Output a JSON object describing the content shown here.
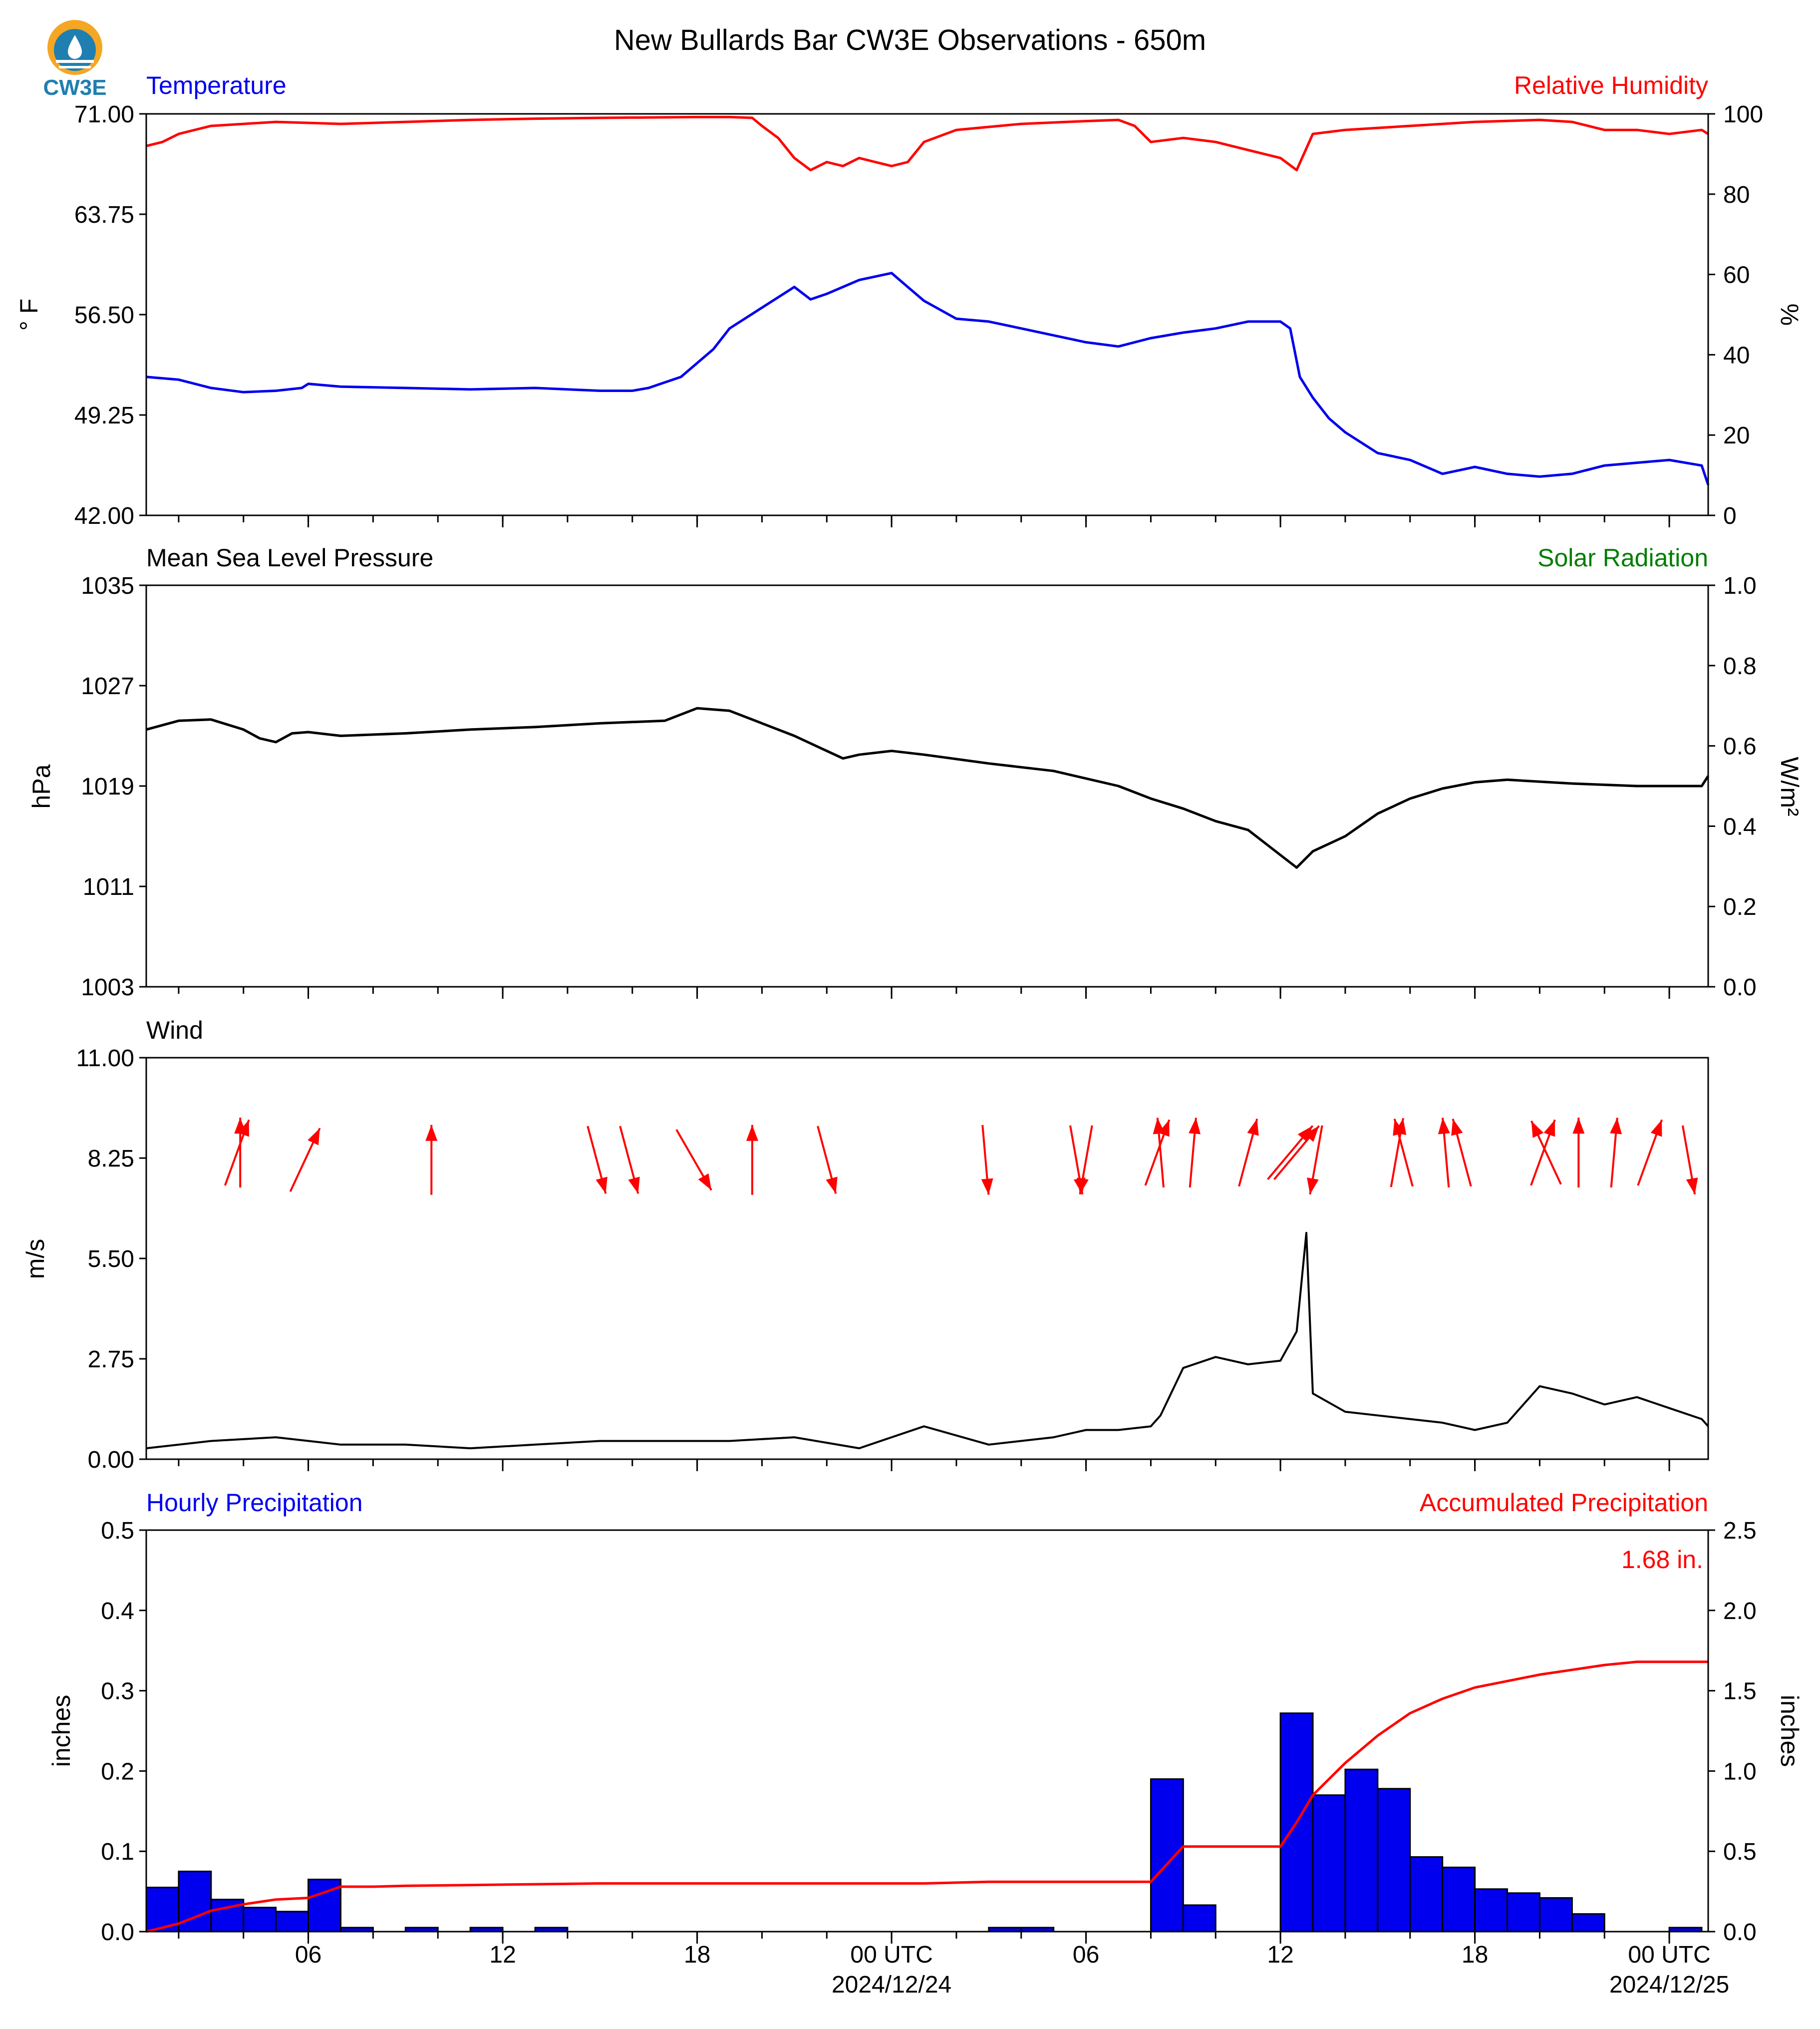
{
  "title": "New Bullards Bar CW3E Observations - 650m",
  "logo_text": "CW3E",
  "colors": {
    "blue": "#0000ee",
    "red": "#ff0000",
    "green": "#007d00",
    "black": "#000000",
    "logo_orange": "#f5a623",
    "logo_teal": "#1f7fb0"
  },
  "x_axis": {
    "range_hours": [
      0,
      48.2
    ],
    "major_ticks": [
      {
        "h": 5,
        "label": "06"
      },
      {
        "h": 11,
        "label": "12"
      },
      {
        "h": 17,
        "label": "18"
      },
      {
        "h": 23,
        "label": "00 UTC",
        "date": "2024/12/24"
      },
      {
        "h": 29,
        "label": "06"
      },
      {
        "h": 35,
        "label": "12"
      },
      {
        "h": 41,
        "label": "18"
      },
      {
        "h": 47,
        "label": "00 UTC",
        "date": "2024/12/25"
      }
    ]
  },
  "panels": {
    "temp_rh": {
      "left_label": "Temperature",
      "right_label": "Relative Humidity",
      "left_unit": "° F",
      "right_unit": "%",
      "left_ticks": [
        "71.00",
        "63.75",
        "56.50",
        "49.25",
        "42.00"
      ],
      "right_ticks": [
        "100",
        "80",
        "60",
        "40",
        "20",
        "0"
      ]
    },
    "pressure": {
      "left_label": "Mean Sea Level Pressure",
      "right_label": "Solar Radiation",
      "left_unit": "hPa",
      "right_unit": "W/m²",
      "left_ticks": [
        "1035",
        "1027",
        "1019",
        "1011",
        "1003"
      ],
      "right_ticks": [
        "1.0",
        "0.8",
        "0.6",
        "0.4",
        "0.2",
        "0.0"
      ]
    },
    "wind": {
      "left_label": "Wind",
      "left_unit": "m/s",
      "left_ticks": [
        "11.00",
        "8.25",
        "5.50",
        "2.75",
        "0.00"
      ]
    },
    "precip": {
      "left_label": "Hourly Precipitation",
      "right_label": "Accumulated Precipitation",
      "left_unit": "inches",
      "right_unit": "inches",
      "total_label": "1.68 in.",
      "left_ticks": [
        "0.5",
        "0.4",
        "0.3",
        "0.2",
        "0.1",
        "0.0"
      ],
      "right_ticks": [
        "2.5",
        "2.0",
        "1.5",
        "1.0",
        "0.5",
        "0.0"
      ]
    }
  },
  "chart_data": [
    {
      "type": "line",
      "title": "",
      "xlabel": "",
      "ylabel": "° F",
      "ylim": [
        42,
        71
      ],
      "y2label": "%",
      "y2lim": [
        0,
        100
      ],
      "series": [
        {
          "name": "Temperature",
          "axis": "left",
          "color": "#0000ee",
          "x": [
            0,
            1,
            2,
            3,
            4,
            4.8,
            5,
            6,
            8,
            10,
            12,
            14,
            15,
            15.5,
            16,
            16.5,
            17,
            17.5,
            18,
            19,
            20,
            20.5,
            21,
            22,
            23,
            23.5,
            24,
            25,
            26,
            27,
            28,
            29,
            30,
            31,
            32,
            33,
            34,
            35,
            35.3,
            35.6,
            36,
            36.5,
            37,
            38,
            39,
            40,
            41,
            42,
            43,
            44,
            45,
            46,
            47,
            48,
            48.2
          ],
          "y": [
            52.0,
            51.8,
            51.2,
            50.9,
            51.0,
            51.2,
            51.5,
            51.3,
            51.2,
            51.1,
            51.2,
            51.0,
            51.0,
            51.2,
            51.6,
            52.0,
            53.0,
            54.0,
            55.5,
            57.0,
            58.5,
            57.6,
            58.0,
            59.0,
            59.5,
            58.5,
            57.5,
            56.2,
            56.0,
            55.5,
            55.0,
            54.5,
            54.2,
            54.8,
            55.2,
            55.5,
            56.0,
            56.0,
            55.5,
            52.0,
            50.5,
            49.0,
            48.0,
            46.5,
            46.0,
            45.0,
            45.5,
            45.0,
            44.8,
            45.0,
            45.6,
            45.8,
            46.0,
            45.6,
            44.2
          ]
        },
        {
          "name": "Relative Humidity",
          "axis": "right",
          "color": "#ff0000",
          "x": [
            0,
            0.5,
            1,
            2,
            3,
            4,
            6,
            8,
            10,
            12,
            14,
            17,
            18,
            18.7,
            19,
            19.5,
            20,
            20.5,
            21,
            21.5,
            22,
            22.5,
            23,
            23.5,
            24,
            25,
            27,
            29,
            30,
            30.5,
            31,
            32,
            33,
            34,
            35,
            35.5,
            36,
            37,
            39,
            41,
            43,
            44,
            45,
            46,
            47,
            48,
            48.2
          ],
          "y": [
            92,
            93,
            95,
            97,
            97.5,
            98,
            97.5,
            98,
            98.5,
            98.8,
            99,
            99.2,
            99.2,
            99,
            97,
            94,
            89,
            86,
            88,
            87,
            89,
            88,
            87,
            88,
            93,
            96,
            97.5,
            98.2,
            98.5,
            97,
            93,
            94,
            93,
            91,
            89,
            86,
            95,
            96,
            97,
            98,
            98.5,
            98,
            96,
            96,
            95,
            96,
            95
          ]
        }
      ]
    },
    {
      "type": "line",
      "title": "",
      "xlabel": "",
      "ylabel": "hPa",
      "ylim": [
        1003,
        1035
      ],
      "y2label": "W/m²",
      "y2lim": [
        0.0,
        1.0
      ],
      "series": [
        {
          "name": "Mean Sea Level Pressure",
          "axis": "left",
          "color": "#000000",
          "x": [
            0,
            1,
            2,
            3,
            3.5,
            4,
            4.5,
            5,
            6,
            8,
            10,
            12,
            14,
            16,
            17,
            18,
            19,
            20,
            21,
            21.5,
            22,
            23,
            24,
            26,
            28,
            30,
            31,
            32,
            33,
            34,
            35,
            35.5,
            36,
            37,
            38,
            39,
            40,
            41,
            42,
            44,
            46,
            48,
            48.2
          ],
          "y": [
            1023.5,
            1024.2,
            1024.3,
            1023.5,
            1022.8,
            1022.5,
            1023.2,
            1023.3,
            1023.0,
            1023.2,
            1023.5,
            1023.7,
            1024,
            1024.2,
            1025.2,
            1025.0,
            1024.0,
            1023.0,
            1021.8,
            1021.2,
            1021.5,
            1021.8,
            1021.5,
            1020.8,
            1020.2,
            1019.0,
            1018.0,
            1017.2,
            1016.2,
            1015.5,
            1013.5,
            1012.5,
            1013.8,
            1015.0,
            1016.8,
            1018.0,
            1018.8,
            1019.3,
            1019.5,
            1019.2,
            1019,
            1019,
            1019.8
          ]
        }
      ]
    },
    {
      "type": "line",
      "title": "",
      "xlabel": "",
      "ylabel": "m/s",
      "ylim": [
        0,
        11
      ],
      "series": [
        {
          "name": "Wind",
          "axis": "left",
          "color": "#000000",
          "x": [
            0,
            2,
            4,
            6,
            8,
            10,
            12,
            14,
            16,
            18,
            20,
            22,
            23,
            24,
            26,
            28,
            29,
            30,
            31,
            31.3,
            32,
            33,
            34,
            35,
            35.5,
            35.8,
            36,
            37,
            38,
            39,
            40,
            41,
            42,
            43,
            44,
            45,
            46,
            47,
            48,
            48.2
          ],
          "y": [
            0.3,
            0.5,
            0.6,
            0.4,
            0.4,
            0.3,
            0.4,
            0.5,
            0.5,
            0.5,
            0.6,
            0.3,
            0.6,
            0.9,
            0.4,
            0.6,
            0.8,
            0.8,
            0.9,
            1.2,
            2.5,
            2.8,
            2.6,
            2.7,
            3.5,
            6.2,
            1.8,
            1.3,
            1.2,
            1.1,
            1.0,
            0.8,
            1.0,
            2.0,
            1.8,
            1.5,
            1.7,
            1.4,
            1.1,
            0.9
          ]
        },
        {
          "name": "Wind direction arrows",
          "axis": "none",
          "color": "#ff0000",
          "x": [
            2.8,
            2.9,
            4.9,
            8.8,
            13.9,
            14.9,
            16.9,
            18.7,
            21.0,
            25.9,
            28.7,
            29.0,
            31.2,
            31.3,
            32.3,
            34.0,
            35.3,
            35.5,
            36.1,
            38.6,
            38.8,
            40.1,
            40.6,
            43.1,
            43.2,
            44.2,
            45.3,
            46.4,
            47.6
          ],
          "y": [
            8.4,
            8.4,
            8.2,
            8.2,
            8.2,
            8.2,
            8.2,
            8.2,
            8.2,
            8.2,
            8.2,
            8.2,
            8.4,
            8.4,
            8.4,
            8.4,
            8.4,
            8.4,
            8.2,
            8.4,
            8.4,
            8.4,
            8.4,
            8.4,
            8.4,
            8.4,
            8.4,
            8.4,
            8.2
          ],
          "direction_deg": [
            20,
            0,
            25,
            0,
            165,
            165,
            150,
            0,
            165,
            175,
            170,
            190,
            20,
            355,
            5,
            15,
            40,
            40,
            190,
            10,
            345,
            355,
            345,
            20,
            335,
            0,
            5,
            20,
            170
          ]
        }
      ]
    },
    {
      "type": "bar",
      "title": "",
      "xlabel": "",
      "ylabel": "inches",
      "ylim": [
        0,
        0.5
      ],
      "y2label": "inches",
      "y2lim": [
        0,
        2.5
      ],
      "series": [
        {
          "name": "Hourly Precipitation",
          "axis": "left",
          "color": "#0000ee",
          "x": [
            0,
            1,
            2,
            3,
            4,
            5,
            6,
            8,
            10,
            12,
            26,
            27,
            31,
            32,
            35,
            36,
            37,
            38,
            39,
            40,
            41,
            42,
            43,
            44,
            45,
            47
          ],
          "values": [
            0.055,
            0.075,
            0.04,
            0.03,
            0.025,
            0.065,
            0.005,
            0.005,
            0.005,
            0.005,
            0.005,
            0.005,
            0.19,
            0.033,
            0.272,
            0.17,
            0.202,
            0.178,
            0.093,
            0.08,
            0.053,
            0.048,
            0.042,
            0.022,
            0.0,
            0.005
          ]
        },
        {
          "name": "Accumulated Precipitation",
          "axis": "right",
          "color": "#ff0000",
          "x": [
            0,
            1,
            2,
            3,
            4,
            5,
            6,
            7,
            8,
            10,
            12,
            14,
            16,
            18,
            20,
            22,
            24,
            26,
            28,
            30,
            31,
            31.5,
            32,
            33,
            34,
            35,
            35.5,
            36,
            37,
            38,
            39,
            40,
            41,
            42,
            43,
            44,
            45,
            46,
            47,
            48.2
          ],
          "y": [
            0.0,
            0.05,
            0.13,
            0.17,
            0.2,
            0.21,
            0.28,
            0.28,
            0.285,
            0.29,
            0.295,
            0.3,
            0.3,
            0.3,
            0.3,
            0.3,
            0.3,
            0.31,
            0.31,
            0.31,
            0.31,
            0.42,
            0.53,
            0.53,
            0.53,
            0.53,
            0.68,
            0.85,
            1.05,
            1.22,
            1.36,
            1.45,
            1.52,
            1.56,
            1.6,
            1.63,
            1.66,
            1.68,
            1.68,
            1.68
          ]
        }
      ]
    }
  ]
}
